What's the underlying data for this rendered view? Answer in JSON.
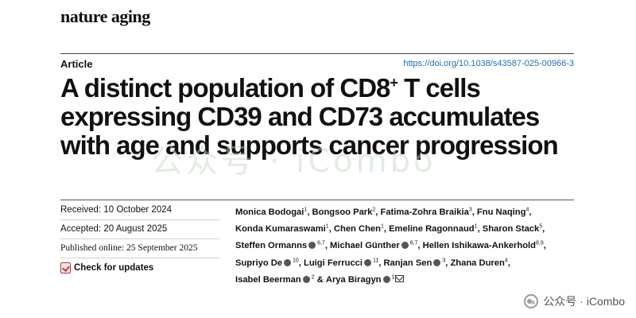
{
  "journal": "nature aging",
  "article_type": "Article",
  "doi": "https://doi.org/10.1038/s43587-025-00966-3",
  "title": {
    "line1_pre": "A distinct population of CD8",
    "line1_sup": "+",
    "line1_post": " T cells",
    "line2": "expressing CD39 and CD73 accumulates",
    "line3": "with age and supports cancer progression"
  },
  "watermark": "公众号 · iCombo",
  "dates": {
    "received": "Received: 10 October 2024",
    "accepted": "Accepted: 20 August 2025",
    "published": "Published online: 25 September 2025"
  },
  "check_updates": "Check for updates",
  "authors": [
    {
      "name": "Monica Bodogai",
      "aff": "1",
      "orcid": false,
      "sep": ", "
    },
    {
      "name": "Bongsoo Park",
      "aff": "2",
      "orcid": false,
      "sep": ", "
    },
    {
      "name": "Fatima-Zohra Braikia",
      "aff": "3",
      "orcid": false,
      "sep": ", "
    },
    {
      "name": "Fnu Naqing",
      "aff": "4",
      "orcid": false,
      "sep": ", "
    },
    {
      "name": "Konda Kumaraswami",
      "aff": "1",
      "orcid": false,
      "sep": ", "
    },
    {
      "name": "Chen Chen",
      "aff": "1",
      "orcid": false,
      "sep": ", "
    },
    {
      "name": "Emeline Ragonnaud",
      "aff": "1",
      "orcid": false,
      "sep": ", "
    },
    {
      "name": "Sharon Stack",
      "aff": "5",
      "orcid": false,
      "sep": ", "
    },
    {
      "name": "Steffen Ormanns",
      "aff": "6,7",
      "orcid": true,
      "sep": ", "
    },
    {
      "name": "Michael Günther",
      "aff": "6,7",
      "orcid": true,
      "sep": ", "
    },
    {
      "name": "Hellen Ishikawa-Ankerhold",
      "aff": "8,9",
      "orcid": false,
      "sep": ", "
    },
    {
      "name": "Supriyo De",
      "aff": "10",
      "orcid": true,
      "sep": ", "
    },
    {
      "name": "Luigi Ferrucci",
      "aff": "11",
      "orcid": true,
      "sep": ", "
    },
    {
      "name": "Ranjan Sen",
      "aff": "3",
      "orcid": true,
      "sep": ", "
    },
    {
      "name": "Zhana Duren",
      "aff": "4",
      "orcid": false,
      "sep": ", "
    },
    {
      "name": "Isabel Beerman",
      "aff": "2",
      "orcid": true,
      "sep": " & "
    },
    {
      "name": "Arya Biragyn",
      "aff": "1",
      "orcid": true,
      "sep": "",
      "email": true
    }
  ],
  "footer_brand": "公众号 · iCombo",
  "colors": {
    "doi_link": "#1a6fb3",
    "orcid": "#555555"
  }
}
